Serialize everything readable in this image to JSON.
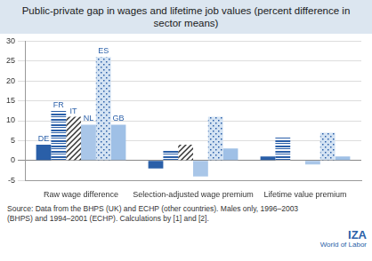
{
  "chart_data": {
    "type": "bar",
    "title": "Public-private gap in wages and lifetime job values (percent difference in sector means)",
    "categories": [
      "Raw wage difference",
      "Selection-adjusted wage premium",
      "Lifetime value premium"
    ],
    "series": [
      {
        "name": "DE",
        "color": "#2a5fa8",
        "values": [
          4,
          -2,
          1
        ]
      },
      {
        "name": "FR",
        "color": "#2a5fa8",
        "values": [
          12.5,
          2.5,
          6
        ]
      },
      {
        "name": "IT",
        "color": "#333333",
        "values": [
          11,
          4,
          0
        ]
      },
      {
        "name": "NL",
        "color": "#a9c6e8",
        "values": [
          9,
          -4,
          -1
        ]
      },
      {
        "name": "ES",
        "color": "#2a5fa8",
        "values": [
          26,
          11,
          7
        ]
      },
      {
        "name": "GB",
        "color": "#9fc0e6",
        "values": [
          9,
          3,
          1
        ]
      }
    ],
    "ylim": [
      -5,
      30
    ],
    "yticks": [
      -5,
      0,
      5,
      10,
      15,
      20,
      25,
      30
    ],
    "grid": true,
    "annotations": [
      "Source: Data from the BHPS (UK) and ECHP (other countries). Males only, 1996–2003 (BHPS) and 1994–2001 (ECHP). Calculations by [1] and [2].",
      "IZA",
      "World of Labor"
    ]
  }
}
